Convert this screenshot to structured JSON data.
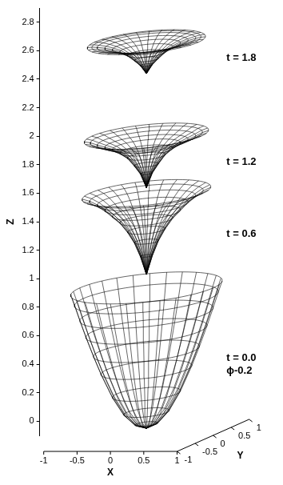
{
  "chart_data": {
    "type": "surface3d",
    "xlabel": "X",
    "ylabel": "Y",
    "zlabel": "Z",
    "xlim": [
      -1,
      1
    ],
    "xticks": [
      -1,
      -0.5,
      0,
      0.5,
      1
    ],
    "ylim": [
      -1,
      1
    ],
    "yticks": [
      -1,
      -0.5,
      0,
      0.5,
      1
    ],
    "zlim": [
      -0.1,
      2.9
    ],
    "zticks": [
      0,
      0.2,
      0.4,
      0.6,
      0.8,
      1,
      1.2,
      1.4,
      1.6,
      1.8,
      2,
      2.2,
      2.4,
      2.6,
      2.8
    ],
    "grid": false,
    "series": [
      {
        "name": "t = 0.0",
        "annotation": "ϕ-0.2",
        "color": "#000000",
        "r": [
          0,
          0.15,
          0.3,
          0.45,
          0.6,
          0.7,
          0.8,
          0.88,
          0.95,
          1.0
        ],
        "z": [
          -0.05,
          -0.02,
          0.06,
          0.19,
          0.36,
          0.49,
          0.63,
          0.75,
          0.86,
          0.935
        ]
      },
      {
        "name": "t = 0.6",
        "color": "#000000",
        "r": [
          0,
          0.08,
          0.16,
          0.25,
          0.35,
          0.45,
          0.55,
          0.65,
          0.75,
          0.85
        ],
        "z": [
          1.03,
          1.16,
          1.26,
          1.34,
          1.41,
          1.46,
          1.51,
          1.55,
          1.58,
          1.6
        ]
      },
      {
        "name": "t = 1.2",
        "color": "#000000",
        "r": [
          0,
          0.08,
          0.16,
          0.25,
          0.35,
          0.45,
          0.55,
          0.65,
          0.74,
          0.82
        ],
        "z": [
          1.64,
          1.74,
          1.8,
          1.86,
          1.9,
          1.93,
          1.95,
          1.97,
          1.99,
          2.0
        ]
      },
      {
        "name": "t = 1.8",
        "color": "#000000",
        "r": [
          0,
          0.08,
          0.16,
          0.25,
          0.35,
          0.45,
          0.55,
          0.65,
          0.72,
          0.78
        ],
        "z": [
          2.44,
          2.5,
          2.54,
          2.58,
          2.61,
          2.63,
          2.645,
          2.655,
          2.66,
          2.66
        ]
      }
    ]
  }
}
